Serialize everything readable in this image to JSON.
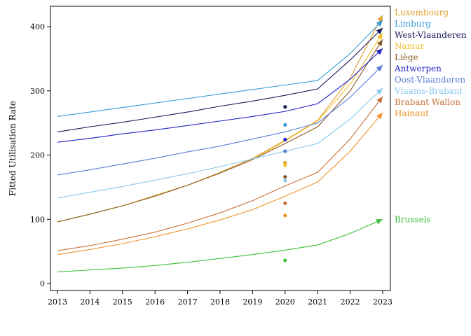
{
  "chart_data": {
    "type": "line",
    "title": "",
    "xlabel": "",
    "ylabel": "Fitted Utilisation Rate",
    "xlim": [
      2013,
      2023
    ],
    "ylim": [
      -5,
      432
    ],
    "x_ticks": [
      2013,
      2014,
      2015,
      2016,
      2017,
      2018,
      2019,
      2020,
      2021,
      2022,
      2023
    ],
    "y_ticks": [
      0,
      100,
      200,
      300,
      400
    ],
    "grid": false,
    "legend": "right, labels at line ends",
    "x": [
      2013,
      2014,
      2015,
      2016,
      2017,
      2018,
      2019,
      2020,
      2021,
      2022,
      2023
    ],
    "series": [
      {
        "name": "Luxembourg",
        "color": "#e0a030",
        "values": [
          96,
          108,
          121,
          137,
          153,
          173,
          195,
          223,
          254,
          320,
          418
        ],
        "point_2020": 188
      },
      {
        "name": "Limburg",
        "color": "#3a9ad9",
        "values": [
          260,
          267,
          274,
          281,
          288,
          295,
          302,
          309,
          316,
          358,
          410
        ],
        "point_2020": 247
      },
      {
        "name": "West-Vlaanderen",
        "color": "#1a1a5e",
        "values": [
          236,
          244,
          251,
          259,
          267,
          276,
          284,
          293,
          303,
          348,
          398
        ],
        "point_2020": 275
      },
      {
        "name": "Namur",
        "color": "#f2c029",
        "values": [
          96,
          108,
          121,
          136,
          153,
          172,
          193,
          222,
          253,
          310,
          390
        ],
        "point_2020": 184
      },
      {
        "name": "Liège",
        "color": "#8b5a2b",
        "values": [
          96,
          108,
          121,
          136,
          153,
          172,
          193,
          218,
          244,
          300,
          380
        ],
        "point_2020": 166
      },
      {
        "name": "Antwerpen",
        "color": "#2020c8",
        "values": [
          220,
          226,
          233,
          239,
          246,
          253,
          260,
          268,
          280,
          318,
          366
        ],
        "point_2020": 224
      },
      {
        "name": "Oost-Vlaanderen",
        "color": "#5a7fd6",
        "values": [
          169,
          177,
          186,
          195,
          205,
          214,
          225,
          236,
          250,
          290,
          340
        ],
        "point_2020": 206
      },
      {
        "name": "Vlaams-Brabant",
        "color": "#88c8ee",
        "values": [
          133,
          142,
          151,
          161,
          171,
          182,
          194,
          206,
          218,
          256,
          304
        ],
        "point_2020": 160
      },
      {
        "name": "Brabant Wallon",
        "color": "#c8703a",
        "values": [
          51,
          59,
          69,
          80,
          94,
          110,
          129,
          152,
          173,
          225,
          291
        ],
        "point_2020": 125
      },
      {
        "name": "Hainaut",
        "color": "#f0922a",
        "values": [
          45,
          53,
          62,
          73,
          85,
          99,
          115,
          136,
          158,
          206,
          266
        ],
        "point_2020": 106
      },
      {
        "name": "Brussels",
        "color": "#3ec03e",
        "values": [
          18,
          21,
          24,
          28,
          33,
          39,
          45,
          52,
          60,
          78,
          100
        ],
        "point_2020": 36
      }
    ],
    "legend_order": [
      "Luxembourg",
      "Limburg",
      "West-Vlaanderen",
      "Namur",
      "Liège",
      "Antwerpen",
      "Oost-Vlaanderen",
      "Vlaams-Brabant",
      "Brabant Wallon",
      "Hainaut",
      "Brussels"
    ]
  }
}
